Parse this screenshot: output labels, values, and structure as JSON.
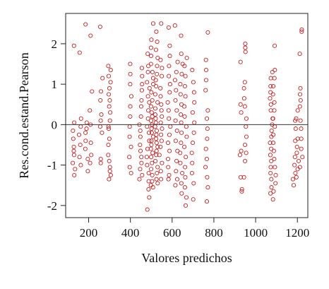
{
  "chart_data": {
    "type": "scatter",
    "title": "",
    "xlabel": "Valores predichos",
    "ylabel": "Res.cond.estand.Pearson",
    "xlim": [
      90,
      1250
    ],
    "ylim": [
      -2.3,
      2.75
    ],
    "xticks": [
      200,
      400,
      600,
      800,
      1000,
      1200
    ],
    "yticks": [
      -2,
      -1,
      0,
      1,
      2
    ],
    "grid": false,
    "legend": "none",
    "reference_line_y": 0,
    "marker": "open-circle",
    "marker_color": "#c42020",
    "reference_line_color": "#333333",
    "columns": [
      {
        "x": 130,
        "y": [
          1.95,
          0.05,
          -0.15,
          -0.35,
          -0.55,
          -0.75,
          -0.95,
          -1.1,
          -1.25,
          -0.65
        ]
      },
      {
        "x": 160,
        "y": [
          1.78,
          0.15,
          -0.05,
          -0.25,
          -0.5,
          -0.8,
          -1.0
        ]
      },
      {
        "x": 190,
        "y": [
          2.48,
          0.05,
          -0.1,
          -0.4,
          -0.6,
          -0.85,
          -1.15,
          -0.2
        ]
      },
      {
        "x": 210,
        "y": [
          2.2,
          0.82,
          0.35,
          0.0,
          -0.45,
          -0.75,
          -0.95
        ]
      },
      {
        "x": 260,
        "y": [
          2.42,
          1.15,
          0.82,
          0.6,
          0.25,
          0.1,
          -0.05,
          -0.2,
          -0.85,
          -0.95
        ]
      },
      {
        "x": 300,
        "y": [
          1.45,
          1.35,
          1.2,
          1.05,
          0.9,
          0.75,
          0.6,
          0.45,
          0.3,
          0.1,
          -0.05,
          -0.1,
          -0.35,
          -0.5,
          -0.75,
          -0.9,
          -1.05,
          -1.15,
          -1.25,
          -1.35
        ]
      },
      {
        "x": 400,
        "y": [
          1.5,
          1.25,
          1.0,
          0.7,
          0.45,
          0.2,
          -0.05,
          -0.3,
          -0.55,
          -0.8,
          -1.05,
          -1.2
        ]
      },
      {
        "x": 450,
        "y": [
          1.4,
          1.2,
          1.0,
          0.85,
          0.6,
          0.45,
          0.2,
          0.0,
          -0.15,
          -0.3,
          -0.5,
          -0.65,
          -0.8,
          -0.95,
          -1.1,
          -1.25,
          -1.35
        ]
      },
      {
        "x": 485,
        "y": [
          1.75,
          1.45,
          1.3,
          1.05,
          0.9,
          0.7,
          0.55,
          0.35,
          0.15,
          -0.05,
          -0.2,
          -0.4,
          -0.6,
          -0.8,
          -1.0,
          -1.2,
          -1.4,
          -1.6,
          -1.8,
          -2.1
        ]
      },
      {
        "x": 505,
        "y": [
          2.5,
          2.1,
          1.9,
          1.7,
          1.5,
          1.3,
          1.15,
          1.0,
          0.8,
          0.6,
          0.45,
          0.3,
          0.2,
          0.1,
          0.0,
          -0.1,
          -0.2,
          -0.3,
          -0.4,
          -0.5,
          -0.6,
          -0.7,
          -0.8,
          -0.95,
          -1.1,
          -1.25,
          -1.4,
          -1.5,
          -1.55
        ]
      },
      {
        "x": 525,
        "y": [
          2.3,
          2.05,
          1.85,
          1.65,
          1.45,
          1.25,
          1.1,
          0.95,
          0.75,
          0.55,
          0.4,
          0.25,
          0.15,
          0.05,
          -0.05,
          -0.15,
          -0.25,
          -0.35,
          -0.45,
          -0.55,
          -0.65,
          -0.75,
          -0.9,
          -1.05,
          -1.2,
          -1.35,
          -1.45
        ]
      },
      {
        "x": 545,
        "y": [
          2.5,
          1.6,
          1.4,
          1.2,
          0.9,
          0.7,
          0.5,
          0.35,
          0.2,
          0.05,
          -0.1,
          -0.25,
          -0.4,
          -0.55,
          -0.75,
          -0.95,
          -1.15,
          -1.35
        ]
      },
      {
        "x": 585,
        "y": [
          2.4,
          1.95,
          1.7,
          1.45,
          1.2,
          1.0,
          0.8,
          0.55,
          0.35,
          0.15,
          -0.05,
          -0.25,
          -0.45,
          -0.65,
          -0.85,
          -1.05,
          -1.25,
          -1.35
        ]
      },
      {
        "x": 620,
        "y": [
          2.45,
          1.55,
          1.3,
          1.1,
          0.85,
          0.6,
          0.35,
          0.1,
          -0.15,
          -0.4,
          -0.65,
          -0.9,
          -1.15,
          -1.35,
          -1.5
        ]
      },
      {
        "x": 645,
        "y": [
          2.2,
          1.75,
          1.5,
          1.25,
          1.0,
          0.75,
          0.5,
          0.25,
          0.05,
          -0.2,
          -0.45,
          -0.7,
          -0.95,
          -1.2,
          -1.45,
          -1.7
        ]
      },
      {
        "x": 665,
        "y": [
          1.65,
          1.45,
          1.2,
          0.95,
          0.7,
          0.45,
          0.2,
          -0.05,
          -0.3,
          -0.55,
          -0.8,
          -1.05,
          -1.3,
          -1.55,
          -1.8,
          -2.0
        ]
      },
      {
        "x": 700,
        "y": [
          1.35,
          1.05,
          0.8,
          0.55,
          0.3,
          0.05,
          -0.2,
          -0.45,
          -0.7,
          -0.95,
          -1.2,
          -1.45,
          -1.85
        ]
      },
      {
        "x": 765,
        "y": [
          2.28,
          1.6,
          1.35,
          1.1,
          0.85,
          0.35,
          0.15,
          -0.1,
          -0.35,
          -0.6,
          -0.85,
          -1.05,
          -1.3,
          -1.55,
          -1.9
        ]
      },
      {
        "x": 930,
        "y": [
          1.55,
          0.5,
          0.3,
          -0.65,
          -0.75,
          -1.3,
          -1.6,
          -1.65
        ]
      },
      {
        "x": 950,
        "y": [
          2.0,
          1.9,
          1.8,
          1.05,
          0.9,
          0.65,
          0.45,
          0.15,
          -0.05,
          -0.3,
          -0.5,
          -0.7,
          -0.9,
          -1.3
        ]
      },
      {
        "x": 1075,
        "y": [
          1.3,
          1.15,
          0.95,
          0.8,
          0.65,
          0.5,
          0.35,
          0.15,
          0.0,
          -0.15,
          -0.3,
          -0.45,
          -0.6,
          -0.75,
          -0.9,
          -1.05,
          -1.2,
          -1.35,
          -1.55,
          -1.7
        ]
      },
      {
        "x": 1090,
        "y": [
          1.95,
          1.35,
          1.15,
          0.95,
          0.75,
          0.55,
          0.35,
          0.15,
          -0.05,
          -0.25,
          -0.45,
          -0.65,
          -0.85,
          -1.05,
          -1.25,
          -1.45,
          -1.65,
          -1.85
        ]
      },
      {
        "x": 1185,
        "y": [
          0.1,
          -0.1,
          -0.4,
          -0.8,
          -1.0,
          -1.2,
          -1.35,
          -1.5
        ]
      },
      {
        "x": 1200,
        "y": [
          0.35,
          0.15,
          -0.35,
          -0.55,
          -0.7,
          -0.9,
          -1.1,
          -1.3
        ]
      },
      {
        "x": 1218,
        "y": [
          2.3,
          2.35,
          1.75,
          0.9,
          0.75,
          0.6,
          0.45,
          0.1,
          -0.1,
          -0.35,
          -0.6,
          -0.8,
          -1.05
        ]
      }
    ]
  }
}
